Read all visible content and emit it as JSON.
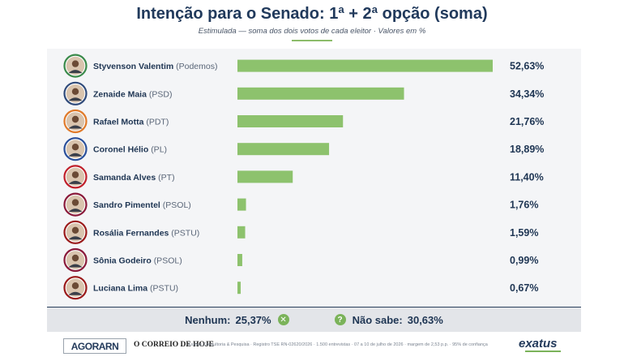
{
  "header": {
    "title": "Intenção para o Senado: 1ª + 2ª opção (soma)",
    "subtitle": "Estimulada — soma dos dois votos de cada eleitor · Valores em %"
  },
  "colors": {
    "bar": "#8dc26d",
    "navy": "#1e3553",
    "card_bg": "#f4f5f7"
  },
  "chart_data": {
    "type": "bar",
    "orientation": "horizontal",
    "title": "Intenção para o Senado: 1ª + 2ª opção (soma)",
    "subtitle": "Estimulada — soma dos dois votos de cada eleitor · Valores em %",
    "ylim": [
      0,
      52.63
    ],
    "grid": false,
    "categories": [
      "Styvenson Valentim (Podemos)",
      "Zenaide Maia (PSD)",
      "Rafael Motta (PDT)",
      "Coronel Hélio (PL)",
      "Samanda Alves (PT)",
      "Sandro Pimentel (PSOL)",
      "Rosália Fernandes (PSTU)",
      "Sônia Godeiro (PSOL)",
      "Luciana Lima (PSTU)"
    ],
    "candidates": [
      {
        "name": "Styvenson Valentim",
        "party": "(Podemos)",
        "value": 52.63,
        "label": "52,63%",
        "ring": "#3a8a4a"
      },
      {
        "name": "Zenaide Maia",
        "party": "(PSD)",
        "value": 34.34,
        "label": "34,34%",
        "ring": "#2f4a7a"
      },
      {
        "name": "Rafael Motta",
        "party": "(PDT)",
        "value": 21.76,
        "label": "21,76%",
        "ring": "#e07a2a"
      },
      {
        "name": "Coronel Hélio",
        "party": "(PL)",
        "value": 18.89,
        "label": "18,89%",
        "ring": "#2a4f9a"
      },
      {
        "name": "Samanda Alves",
        "party": "(PT)",
        "value": 11.4,
        "label": "11,40%",
        "ring": "#c0202a"
      },
      {
        "name": "Sandro Pimentel",
        "party": "(PSOL)",
        "value": 1.76,
        "label": "1,76%",
        "ring": "#8a1a3a"
      },
      {
        "name": "Rosália Fernandes",
        "party": "(PSTU)",
        "value": 1.59,
        "label": "1,59%",
        "ring": "#9a1a1a"
      },
      {
        "name": "Sônia Godeiro",
        "party": "(PSOL)",
        "value": 0.99,
        "label": "0,99%",
        "ring": "#8a1a3a"
      },
      {
        "name": "Luciana Lima",
        "party": "(PSTU)",
        "value": 0.67,
        "label": "0,67%",
        "ring": "#9a1a1a"
      }
    ]
  },
  "summary": {
    "none_label": "Nenhum:",
    "none_value": "25,37%",
    "none_icon": "x-circle-icon",
    "unknown_label": "Não sabe:",
    "unknown_value": "30,63%",
    "unknown_icon": "question-circle-icon"
  },
  "footer": {
    "logo_left": "AGORARN",
    "logo_middle": "O CORREIO DE HOJE",
    "source": "Exatus Consultoria & Pesquisa · Registro TSE RN-02620/2026 · 1.500 entrevistas · 07 a 10 de julho de 2026 · margem de 2,53 p.p. · 95% de confiança",
    "logo_right": "exatus"
  }
}
